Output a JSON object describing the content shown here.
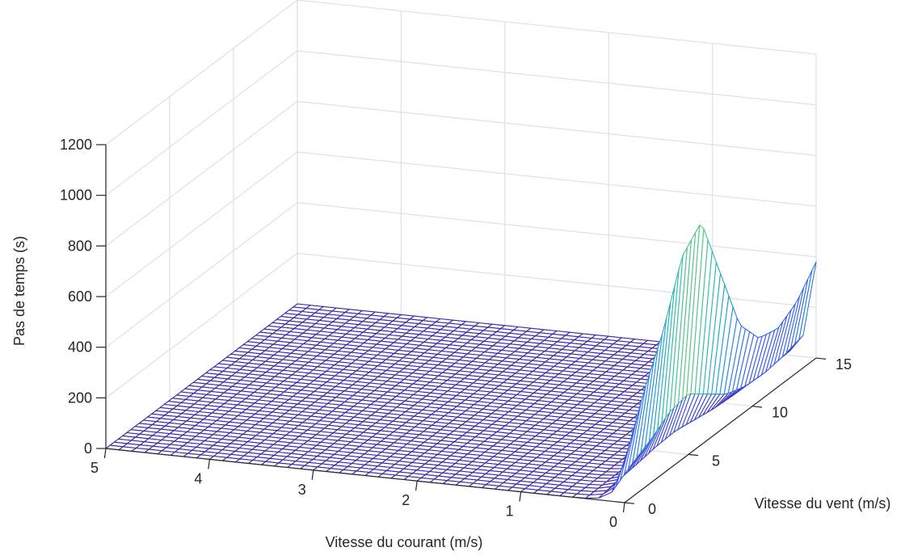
{
  "chart_data": {
    "type": "surface",
    "title": "",
    "xlabel": "Vitesse du courant (m/s)",
    "ylabel": "Vitesse du vent (m/s)",
    "zlabel": "Pas de temps (s)",
    "xlim": [
      0,
      5
    ],
    "ylim": [
      0,
      15
    ],
    "zlim": [
      0,
      1200
    ],
    "x_ticks": [
      "0",
      "1",
      "2",
      "3",
      "4",
      "5"
    ],
    "y_ticks": [
      "0",
      "5",
      "10",
      "15"
    ],
    "z_ticks": [
      "0",
      "200",
      "400",
      "600",
      "800",
      "1000",
      "1200"
    ],
    "grid": true,
    "colormap": [
      "#3e26a8",
      "#3a5cf0",
      "#1e96e0",
      "#29bfae",
      "#81cc59",
      "#e5bc2c",
      "#f9fb0e"
    ],
    "mesh_edge_only": true,
    "surface_profile": {
      "x_range": [
        0,
        5
      ],
      "y_range": [
        0,
        15
      ],
      "z_at_x0_by_y": {
        "y": [
          0,
          1.5,
          3,
          4.5,
          6,
          7.5,
          9,
          10.5,
          12,
          13.5,
          15
        ],
        "z": [
          160,
          380,
          560,
          800,
          880,
          620,
          360,
          250,
          230,
          280,
          380
        ]
      },
      "z_far_from_zero_x": 0
    }
  }
}
